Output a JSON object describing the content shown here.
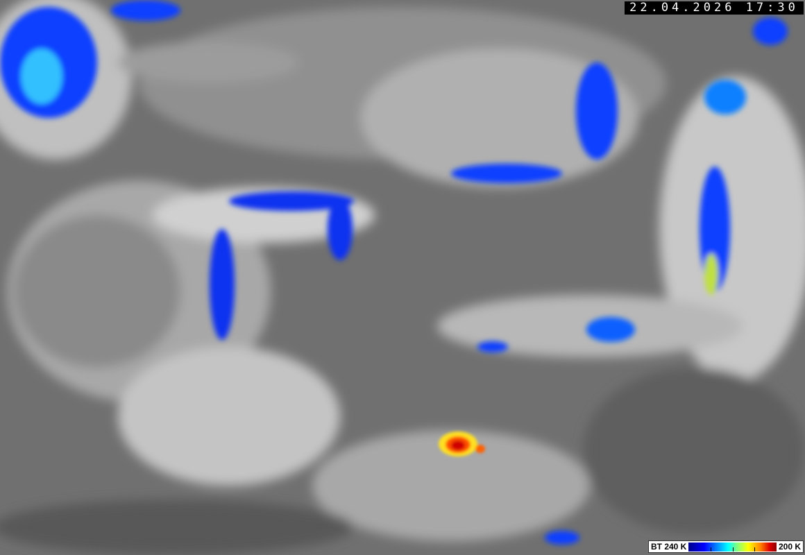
{
  "timestamp": "22.04.2026 17:30",
  "legend": {
    "label_min": "BT 240 K",
    "label_max": "200 K",
    "colors": [
      "#00008c",
      "#0000ff",
      "#00a0ff",
      "#00ffff",
      "#80ff80",
      "#ffff00",
      "#ff8000",
      "#e00000",
      "#8c0000"
    ]
  },
  "background_color": "#6e6e6e"
}
